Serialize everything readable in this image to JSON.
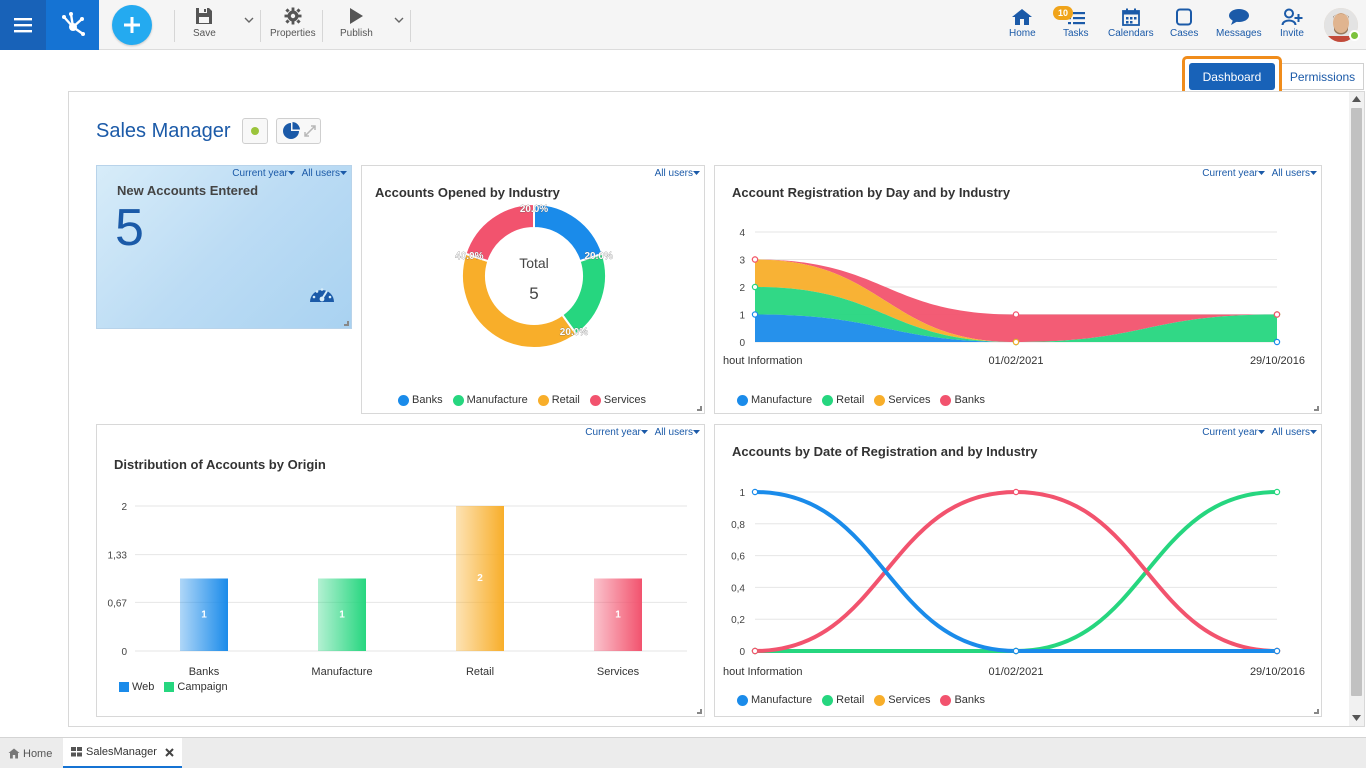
{
  "toolbar": {
    "save_label": "Save",
    "properties_label": "Properties",
    "publish_label": "Publish"
  },
  "header": {
    "home_label": "Home",
    "tasks_label": "Tasks",
    "tasks_badge": "10",
    "calendars_label": "Calendars",
    "cases_label": "Cases",
    "messages_label": "Messages",
    "invite_label": "Invite"
  },
  "view_tabs": {
    "dashboard": "Dashboard",
    "permissions": "Permissions"
  },
  "page": {
    "title": "Sales Manager"
  },
  "filters": {
    "period": "Current year",
    "users": "All users"
  },
  "kpi": {
    "title": "New Accounts Entered",
    "value": "5"
  },
  "donut": {
    "title": "Accounts Opened by Industry",
    "center_label": "Total",
    "center_value": "5",
    "chart_data": {
      "type": "pie",
      "categories": [
        "Banks",
        "Manufacture",
        "Retail",
        "Services"
      ],
      "values": [
        20.0,
        20.0,
        40.0,
        20.0
      ],
      "labels": [
        "20.0%",
        "20.0%",
        "40.0%",
        "20.0%"
      ],
      "colors": [
        "#1a8bea",
        "#26d67f",
        "#f8ae2a",
        "#f2536e"
      ],
      "legend_position": "bottom"
    }
  },
  "area_chart": {
    "title": "Account Registration by Day and by Industry",
    "chart_data": {
      "type": "area",
      "x": [
        "hout Information",
        "01/02/2021",
        "29/10/2016"
      ],
      "yticks": [
        "0",
        "1",
        "2",
        "3",
        "4"
      ],
      "ylim": [
        0,
        4
      ],
      "stacked": true,
      "series": [
        {
          "name": "Manufacture",
          "values": [
            1,
            0,
            0
          ],
          "color": "#1a8bea"
        },
        {
          "name": "Retail",
          "values": [
            1,
            0,
            1
          ],
          "color": "#26d67f"
        },
        {
          "name": "Services",
          "values": [
            1,
            0,
            0
          ],
          "color": "#f8ae2a"
        },
        {
          "name": "Banks",
          "values": [
            0,
            1,
            0
          ],
          "color": "#f2536e"
        }
      ],
      "grid": true,
      "legend_position": "bottom"
    }
  },
  "bar_chart": {
    "title": "Distribution of Accounts by Origin",
    "chart_data": {
      "type": "bar",
      "categories": [
        "Banks",
        "Manufacture",
        "Retail",
        "Services"
      ],
      "values": [
        1,
        1,
        2,
        1
      ],
      "bar_labels": [
        "1",
        "1",
        "2",
        "1"
      ],
      "colors": [
        "#1a8bea",
        "#26d67f",
        "#f8ae2a",
        "#f2536e"
      ],
      "yticks": [
        "0",
        "0,67",
        "1,33",
        "2"
      ],
      "ylim": [
        0,
        2
      ],
      "legend": [
        {
          "name": "Web",
          "color": "#1a8bea"
        },
        {
          "name": "Campaign",
          "color": "#26d67f"
        }
      ],
      "legend_position": "bottom-left",
      "grid": true
    }
  },
  "line_chart": {
    "title": "Accounts by Date of Registration and by Industry",
    "chart_data": {
      "type": "line",
      "x": [
        "hout Information",
        "01/02/2021",
        "29/10/2016"
      ],
      "yticks": [
        "0",
        "0,2",
        "0,4",
        "0,6",
        "0,8",
        "1"
      ],
      "ylim": [
        0,
        1
      ],
      "series": [
        {
          "name": "Manufacture",
          "values": [
            1,
            0,
            0
          ],
          "color": "#1a8bea"
        },
        {
          "name": "Retail",
          "values": [
            0,
            0,
            1
          ],
          "color": "#26d67f"
        },
        {
          "name": "Services",
          "values": [
            0,
            0,
            0
          ],
          "color": "#f8ae2a"
        },
        {
          "name": "Banks",
          "values": [
            0,
            1,
            0
          ],
          "color": "#f2536e"
        }
      ],
      "grid": true,
      "legend_position": "bottom"
    }
  },
  "bottom_tabs": {
    "home": "Home",
    "sales_manager": "SalesManager"
  }
}
